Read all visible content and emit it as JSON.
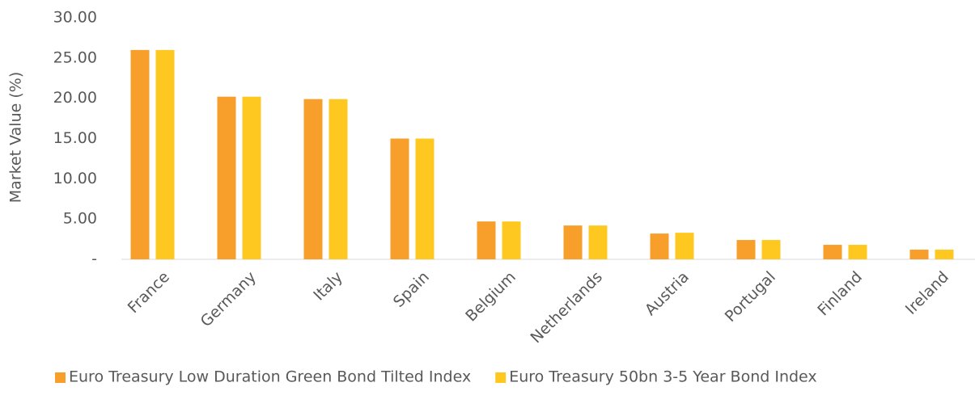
{
  "chart_data": {
    "type": "bar",
    "y_axis_label": "Market Value (%)",
    "categories": [
      "France",
      "Germany",
      "Italy",
      "Spain",
      "Belgium",
      "Netherlands",
      "Austria",
      "Portugal",
      "Finland",
      "Ireland"
    ],
    "series": [
      {
        "name": "Euro Treasury Low Duration Green Bond Tilted Index",
        "color": "#f79e2b",
        "values": [
          26.0,
          20.2,
          19.9,
          15.0,
          4.7,
          4.2,
          3.2,
          2.4,
          1.8,
          1.2
        ]
      },
      {
        "name": "Euro Treasury 50bn 3-5 Year Bond Index",
        "color": "#ffc820",
        "values": [
          26.0,
          20.2,
          19.9,
          15.0,
          4.7,
          4.2,
          3.3,
          2.4,
          1.8,
          1.2
        ]
      }
    ],
    "ylim": [
      0,
      30
    ],
    "yticks": [
      {
        "value": 0,
        "label": "-"
      },
      {
        "value": 5,
        "label": "5.00"
      },
      {
        "value": 10,
        "label": "10.00"
      },
      {
        "value": 15,
        "label": "15.00"
      },
      {
        "value": 20,
        "label": "20.00"
      },
      {
        "value": 25,
        "label": "25.00"
      },
      {
        "value": 30,
        "label": "30.00"
      }
    ],
    "legend": "bottom"
  }
}
